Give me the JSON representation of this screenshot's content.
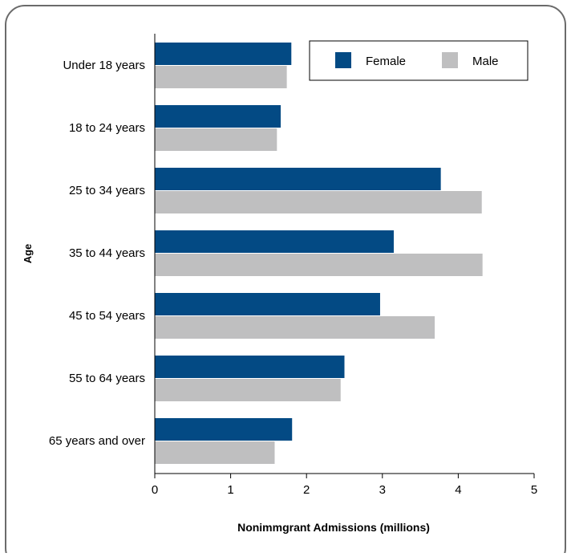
{
  "chart_data": {
    "type": "bar",
    "orientation": "horizontal",
    "categories": [
      "Under 18 years",
      "18 to 24 years",
      "25 to 34 years",
      "35 to 44 years",
      "45 to 54 years",
      "55 to 64 years",
      "65 years and over"
    ],
    "series": [
      {
        "name": "Female",
        "color": "#034a84",
        "values": [
          1.8,
          1.66,
          3.77,
          3.15,
          2.97,
          2.5,
          1.81
        ]
      },
      {
        "name": "Male",
        "color": "#bfbfc0",
        "values": [
          1.74,
          1.61,
          4.31,
          4.32,
          3.69,
          2.45,
          1.58
        ]
      }
    ],
    "xlabel": "Nonimmgrant Admissions (millions)",
    "ylabel": "Age",
    "xlim": [
      0,
      5
    ],
    "xticks": [
      0,
      1,
      2,
      3,
      4,
      5
    ],
    "grid": false,
    "legend_position": "top-right"
  }
}
